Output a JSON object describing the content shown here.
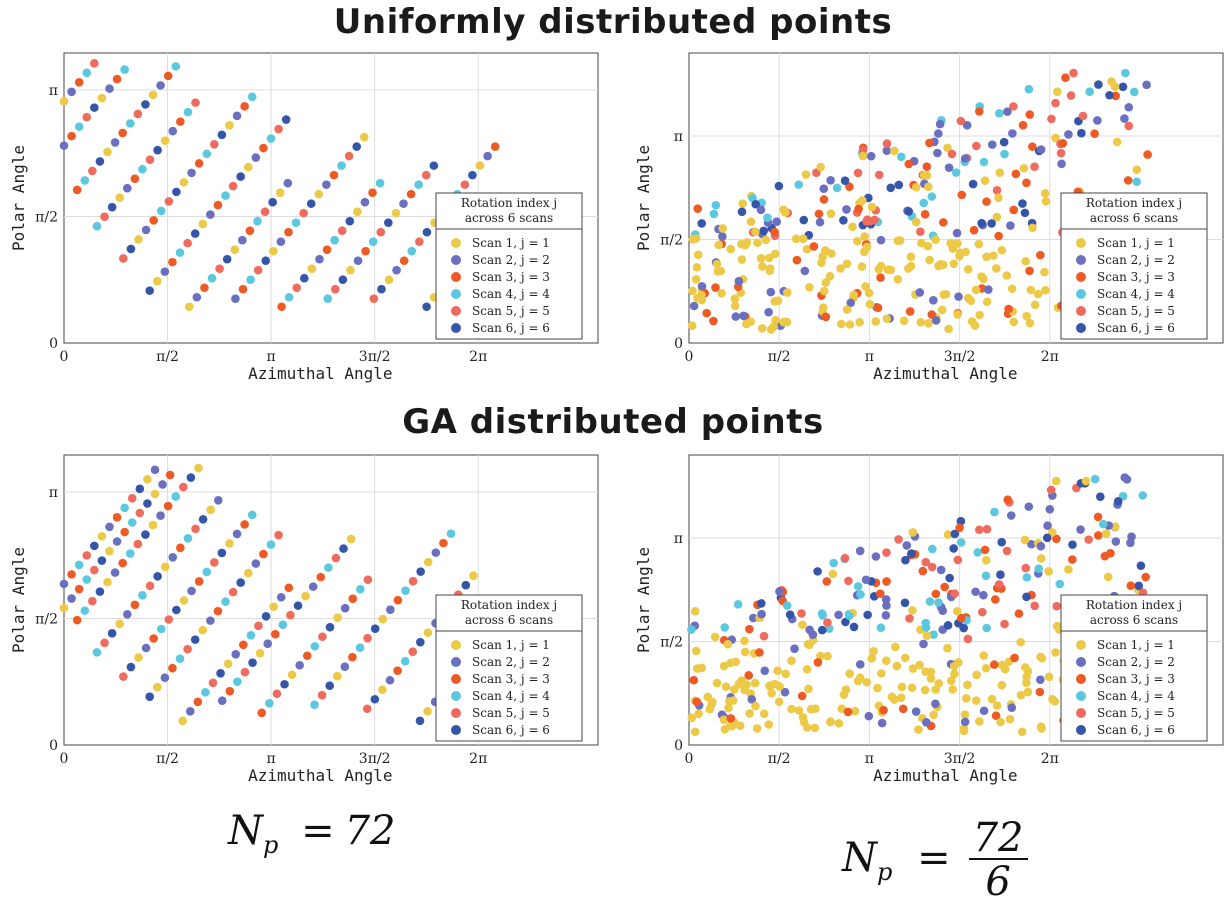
{
  "headings": {
    "top": "Uniformly distributed points",
    "bottom": "GA distributed points"
  },
  "formulas": {
    "left": {
      "symbol": "N",
      "subscript": "p",
      "equals": "=",
      "value": "72"
    },
    "right": {
      "symbol": "N",
      "subscript": "p",
      "equals": "=",
      "numerator": "72",
      "denominator": "6"
    }
  },
  "colors": {
    "scan1": "#EDC948",
    "scan2": "#6A6FBF",
    "scan3": "#EE5A24",
    "scan4": "#5BC8E0",
    "scan5": "#EE6B5E",
    "scan6": "#3556A8"
  },
  "legend": {
    "title_line1": "Rotation index j",
    "title_line2": "across 6 scans",
    "entries": [
      "Scan 1, j = 1",
      "Scan 2, j = 2",
      "Scan 3, j = 3",
      "Scan 4, j = 4",
      "Scan 5, j = 5",
      "Scan 6, j = 6"
    ],
    "placement": "right-bottom"
  },
  "chart_data": [
    {
      "type": "scatter",
      "title": "",
      "xlabel": "Azimuthal Angle",
      "ylabel": "Polar Angle",
      "x_ticks": [
        "0",
        "π/2",
        "π",
        "3π/2",
        "2π"
      ],
      "y_ticks": [
        "0",
        "π/2",
        "π"
      ],
      "xlim": [
        0,
        8.1
      ],
      "ylim": [
        0,
        3.6
      ],
      "grid": true,
      "pattern": "uniform",
      "series": [
        {
          "name": "Scan 1, j = 1"
        },
        {
          "name": "Scan 2, j = 2"
        },
        {
          "name": "Scan 3, j = 3"
        },
        {
          "name": "Scan 4, j = 4"
        },
        {
          "name": "Scan 5, j = 5"
        },
        {
          "name": "Scan 6, j = 6"
        }
      ]
    },
    {
      "type": "scatter",
      "title": "",
      "xlabel": "Azimuthal Angle",
      "ylabel": "Polar Angle",
      "x_ticks": [
        "0",
        "π/2",
        "π",
        "3π/2",
        "2π"
      ],
      "y_ticks": [
        "0",
        "π/2",
        "π"
      ],
      "xlim": [
        0,
        9.3
      ],
      "ylim": [
        0,
        4.4
      ],
      "grid": true,
      "pattern": "uniform-scattered",
      "series": [
        {
          "name": "Scan 1, j = 1"
        },
        {
          "name": "Scan 2, j = 2"
        },
        {
          "name": "Scan 3, j = 3"
        },
        {
          "name": "Scan 4, j = 4"
        },
        {
          "name": "Scan 5, j = 5"
        },
        {
          "name": "Scan 6, j = 6"
        }
      ]
    },
    {
      "type": "scatter",
      "title": "",
      "xlabel": "Azimuthal Angle",
      "ylabel": "Polar Angle",
      "x_ticks": [
        "0",
        "π/2",
        "π",
        "3π/2",
        "2π"
      ],
      "y_ticks": [
        "0",
        "π/2",
        "π"
      ],
      "xlim": [
        0,
        8.1
      ],
      "ylim": [
        0,
        3.6
      ],
      "grid": true,
      "pattern": "ga",
      "series": [
        {
          "name": "Scan 1, j = 1"
        },
        {
          "name": "Scan 2, j = 2"
        },
        {
          "name": "Scan 3, j = 3"
        },
        {
          "name": "Scan 4, j = 4"
        },
        {
          "name": "Scan 5, j = 5"
        },
        {
          "name": "Scan 6, j = 6"
        }
      ]
    },
    {
      "type": "scatter",
      "title": "",
      "xlabel": "Azimuthal Angle",
      "ylabel": "Polar Angle",
      "x_ticks": [
        "0",
        "π/2",
        "π",
        "3π/2",
        "2π"
      ],
      "y_ticks": [
        "0",
        "π/2",
        "π"
      ],
      "xlim": [
        0,
        9.3
      ],
      "ylim": [
        0,
        4.4
      ],
      "grid": true,
      "pattern": "ga-scattered",
      "series": [
        {
          "name": "Scan 1, j = 1"
        },
        {
          "name": "Scan 2, j = 2"
        },
        {
          "name": "Scan 3, j = 3"
        },
        {
          "name": "Scan 4, j = 4"
        },
        {
          "name": "Scan 5, j = 5"
        },
        {
          "name": "Scan 6, j = 6"
        }
      ]
    }
  ]
}
